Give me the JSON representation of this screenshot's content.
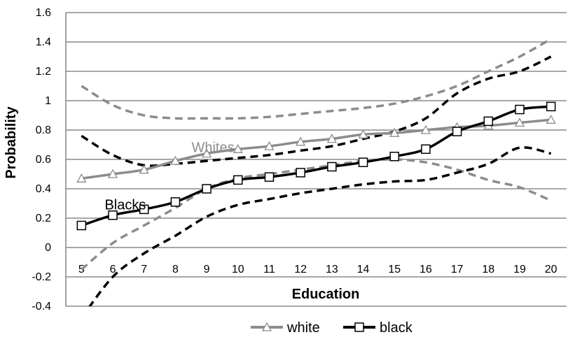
{
  "chart_data": {
    "type": "line",
    "title": "",
    "xlabel": "Education",
    "ylabel": "Probability",
    "x": [
      5,
      6,
      7,
      8,
      9,
      10,
      11,
      12,
      13,
      14,
      15,
      16,
      17,
      18,
      19,
      20
    ],
    "x_tick_labels": [
      "5",
      "6",
      "7",
      "8",
      "9",
      "10",
      "11",
      "12",
      "13",
      "14",
      "15",
      "16",
      "17",
      "18",
      "19",
      "20"
    ],
    "ylim": [
      -0.4,
      1.6
    ],
    "y_ticks": [
      -0.4,
      -0.2,
      0,
      0.2,
      0.4,
      0.6,
      0.8,
      1,
      1.2,
      1.4,
      1.6
    ],
    "y_tick_labels": [
      "-0.4",
      "-0.2",
      "0",
      "0.2",
      "0.4",
      "0.6",
      "0.8",
      "1",
      "1.2",
      "1.4",
      "1.6"
    ],
    "grid": "horizontal",
    "legend_position": "bottom",
    "series": [
      {
        "name": "white",
        "color": "#8c8c8c",
        "marker": "triangle",
        "values": [
          0.47,
          0.5,
          0.53,
          0.59,
          0.64,
          0.67,
          0.69,
          0.72,
          0.74,
          0.77,
          0.78,
          0.8,
          0.82,
          0.83,
          0.85,
          0.87
        ]
      },
      {
        "name": "black",
        "color": "#000000",
        "marker": "square",
        "values": [
          0.15,
          0.22,
          0.26,
          0.31,
          0.4,
          0.46,
          0.48,
          0.51,
          0.55,
          0.58,
          0.62,
          0.67,
          0.79,
          0.86,
          0.94,
          0.96
        ]
      }
    ],
    "confidence_bands": [
      {
        "series": "white",
        "color": "#8c8c8c",
        "upper": [
          1.1,
          0.97,
          0.9,
          0.88,
          0.88,
          0.88,
          0.89,
          0.91,
          0.93,
          0.95,
          0.98,
          1.03,
          1.1,
          1.2,
          1.3,
          1.42
        ],
        "lower": [
          -0.15,
          0.03,
          0.15,
          0.27,
          0.4,
          0.47,
          0.5,
          0.53,
          0.56,
          0.59,
          0.6,
          0.58,
          0.53,
          0.46,
          0.41,
          0.32
        ]
      },
      {
        "series": "black",
        "color": "#000000",
        "upper": [
          0.76,
          0.63,
          0.56,
          0.57,
          0.59,
          0.61,
          0.63,
          0.66,
          0.69,
          0.74,
          0.79,
          0.88,
          1.05,
          1.15,
          1.2,
          1.3
        ],
        "lower": [
          -0.48,
          -0.2,
          -0.04,
          0.08,
          0.21,
          0.29,
          0.33,
          0.37,
          0.4,
          0.43,
          0.45,
          0.46,
          0.51,
          0.57,
          0.68,
          0.64
        ]
      }
    ],
    "annotations": [
      {
        "text": "Whites",
        "x": 9.2,
        "y": 0.65,
        "color": "#8c8c8c"
      },
      {
        "text": "Blacks",
        "x": 6.4,
        "y": 0.26,
        "color": "#000000"
      }
    ]
  }
}
